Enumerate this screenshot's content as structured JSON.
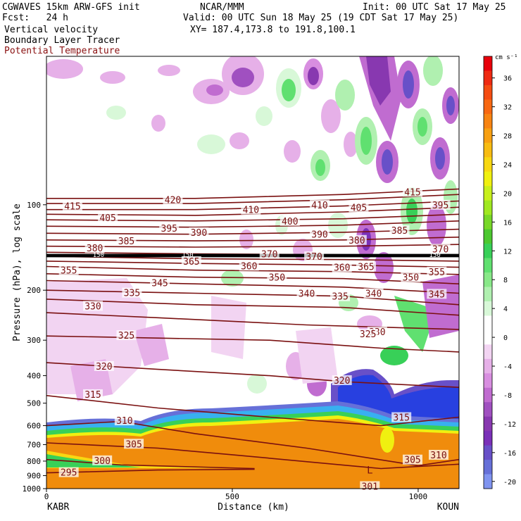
{
  "header": {
    "left_line1": "CGWAVES 15km ARW-GFS init",
    "left_line2": "Fcst:   24 h",
    "field1": "Vertical velocity",
    "field2": "Boundary Layer Tracer",
    "field3": "Potential Temperature",
    "center_line1": "NCAR/MMM",
    "center_line2": "Valid: 00 UTC Sun 18 May 25 (19 CDT Sat 17 May 25)",
    "center_line3": "XY= 187.4,173.8 to 191.8,100.1",
    "right_line1": "Init: 00 UTC Sat 17 May 25"
  },
  "colors": {
    "theta_contour": "#7a1010",
    "theta_label": "#7a1010",
    "land": "#f08c0c"
  },
  "chart_data": {
    "type": "heatmap",
    "title": "",
    "ylabel": "Pressure (hPa), log scale",
    "xlabel": "Distance (km)",
    "x_ticks": [
      0,
      500,
      1000
    ],
    "x_tick_labels": [
      "0",
      "500",
      "1000"
    ],
    "xlim": [
      0,
      1110
    ],
    "y_ticks": [
      100,
      200,
      300,
      400,
      500,
      600,
      700,
      800,
      900,
      1000
    ],
    "y_tick_labels": [
      "100",
      "200",
      "300",
      "400",
      "500",
      "600",
      "700",
      "800",
      "900",
      "1000"
    ],
    "ylim": [
      1000,
      30
    ],
    "y_log": true,
    "endpoints": [
      "KABR",
      "KOUN"
    ],
    "colorbar": {
      "unit": "cm s⁻¹",
      "ticks": [
        36,
        32,
        28,
        24,
        20,
        16,
        12,
        8,
        4,
        0,
        -4,
        -8,
        -12,
        -16,
        -20
      ],
      "levels": [
        {
          "value": 38,
          "color": "#e8000b"
        },
        {
          "value": 36,
          "color": "#ef2a12"
        },
        {
          "value": 34,
          "color": "#f54c12"
        },
        {
          "value": 32,
          "color": "#f86812"
        },
        {
          "value": 30,
          "color": "#f88412"
        },
        {
          "value": 28,
          "color": "#f8a012"
        },
        {
          "value": 26,
          "color": "#f8bc12"
        },
        {
          "value": 24,
          "color": "#f8d812"
        },
        {
          "value": 22,
          "color": "#f0f010"
        },
        {
          "value": 20,
          "color": "#c8f01c"
        },
        {
          "value": 18,
          "color": "#a0e820"
        },
        {
          "value": 16,
          "color": "#78d828"
        },
        {
          "value": 14,
          "color": "#4cc830"
        },
        {
          "value": 12,
          "color": "#38d058"
        },
        {
          "value": 10,
          "color": "#60e070"
        },
        {
          "value": 8,
          "color": "#88e888"
        },
        {
          "value": 6,
          "color": "#b0f0b0"
        },
        {
          "value": 4,
          "color": "#d8f8d8"
        },
        {
          "value": 2,
          "color": "#ffffff"
        },
        {
          "value": 0,
          "color": "#ffffff"
        },
        {
          "value": -2,
          "color": "#f2d4f2"
        },
        {
          "value": -4,
          "color": "#e6b0e8"
        },
        {
          "value": -6,
          "color": "#d88ee0"
        },
        {
          "value": -8,
          "color": "#c06cd0"
        },
        {
          "value": -10,
          "color": "#a050c0"
        },
        {
          "value": -12,
          "color": "#8838b0"
        },
        {
          "value": -14,
          "color": "#7a30b8"
        },
        {
          "value": -16,
          "color": "#6850c8"
        },
        {
          "value": -18,
          "color": "#6670d8"
        },
        {
          "value": -20,
          "color": "#8094f0"
        }
      ]
    },
    "theta_contours": [
      {
        "label": "295",
        "pts": [
          [
            0,
            880
          ],
          [
            300,
            860
          ],
          [
            560,
            855
          ]
        ]
      },
      {
        "label": "300",
        "pts": [
          [
            0,
            790
          ],
          [
            200,
            825
          ],
          [
            560,
            850
          ]
        ]
      },
      {
        "label": "301",
        "pts": [
          [
            850,
            1000
          ],
          [
            1110,
            1000
          ]
        ]
      },
      {
        "label": "305",
        "pts": [
          [
            0,
            690
          ],
          [
            300,
            720
          ],
          [
            500,
            760
          ],
          [
            900,
            850
          ],
          [
            1110,
            820
          ]
        ]
      },
      {
        "label": "310",
        "pts": [
          [
            0,
            600
          ],
          [
            200,
            580
          ],
          [
            400,
            640
          ],
          [
            700,
            720
          ],
          [
            1000,
            830
          ],
          [
            1110,
            790
          ]
        ]
      },
      {
        "label": "315",
        "pts": [
          [
            0,
            470
          ],
          [
            300,
            520
          ],
          [
            600,
            560
          ],
          [
            900,
            600
          ],
          [
            1110,
            560
          ]
        ]
      },
      {
        "label": "320",
        "pts": [
          [
            0,
            360
          ],
          [
            300,
            380
          ],
          [
            600,
            400
          ],
          [
            800,
            420
          ],
          [
            1110,
            440
          ]
        ]
      },
      {
        "label": "325",
        "pts": [
          [
            0,
            290
          ],
          [
            300,
            295
          ],
          [
            600,
            300
          ],
          [
            900,
            320
          ],
          [
            1110,
            330
          ]
        ]
      },
      {
        "label": "330",
        "pts": [
          [
            0,
            240
          ],
          [
            300,
            250
          ],
          [
            700,
            265
          ],
          [
            1110,
            275
          ]
        ]
      },
      {
        "label": "335",
        "pts": [
          [
            0,
            215
          ],
          [
            400,
            225
          ],
          [
            800,
            230
          ],
          [
            1110,
            245
          ]
        ]
      },
      {
        "label": "340",
        "pts": [
          [
            0,
            200
          ],
          [
            400,
            205
          ],
          [
            800,
            210
          ],
          [
            1110,
            225
          ]
        ]
      },
      {
        "label": "345",
        "pts": [
          [
            0,
            185
          ],
          [
            400,
            190
          ],
          [
            800,
            195
          ],
          [
            1110,
            205
          ]
        ]
      },
      {
        "label": "350",
        "pts": [
          [
            0,
            175
          ],
          [
            400,
            180
          ],
          [
            800,
            182
          ],
          [
            1110,
            190
          ]
        ]
      },
      {
        "label": "355",
        "pts": [
          [
            0,
            165
          ],
          [
            400,
            170
          ],
          [
            800,
            172
          ],
          [
            1110,
            176
          ]
        ]
      },
      {
        "label": "360",
        "pts": [
          [
            0,
            158
          ],
          [
            400,
            161
          ],
          [
            800,
            163
          ],
          [
            1110,
            166
          ]
        ]
      },
      {
        "label": "365",
        "pts": [
          [
            0,
            152
          ],
          [
            400,
            155
          ],
          [
            800,
            156
          ],
          [
            1110,
            158
          ]
        ]
      },
      {
        "label": "370",
        "pts": [
          [
            0,
            147
          ],
          [
            400,
            149
          ],
          [
            800,
            150
          ],
          [
            1110,
            152
          ]
        ]
      },
      {
        "label": "380",
        "pts": [
          [
            0,
            140
          ],
          [
            400,
            141
          ],
          [
            800,
            140
          ],
          [
            1110,
            138
          ]
        ]
      },
      {
        "label": "385",
        "pts": [
          [
            0,
            133
          ],
          [
            400,
            134
          ],
          [
            800,
            133
          ],
          [
            1110,
            130
          ]
        ]
      },
      {
        "label": "390",
        "pts": [
          [
            0,
            126
          ],
          [
            400,
            127
          ],
          [
            800,
            125
          ],
          [
            1110,
            122
          ]
        ]
      },
      {
        "label": "395",
        "pts": [
          [
            0,
            119
          ],
          [
            400,
            120
          ],
          [
            800,
            118
          ],
          [
            1110,
            114
          ]
        ]
      },
      {
        "label": "400",
        "pts": [
          [
            0,
            113
          ],
          [
            400,
            114
          ],
          [
            800,
            112
          ],
          [
            1110,
            108
          ]
        ]
      },
      {
        "label": "405",
        "pts": [
          [
            0,
            108
          ],
          [
            400,
            109
          ],
          [
            800,
            106
          ],
          [
            1110,
            102
          ]
        ]
      },
      {
        "label": "410",
        "pts": [
          [
            0,
            104
          ],
          [
            400,
            104
          ],
          [
            800,
            101
          ],
          [
            1110,
            97
          ]
        ]
      },
      {
        "label": "415",
        "pts": [
          [
            0,
            99
          ],
          [
            400,
            99
          ],
          [
            800,
            96
          ],
          [
            1110,
            92
          ]
        ]
      },
      {
        "label": "420",
        "pts": [
          [
            0,
            95
          ],
          [
            400,
            95
          ],
          [
            800,
            92
          ],
          [
            1110,
            88
          ]
        ]
      }
    ],
    "theta_labels": [
      {
        "text": "420",
        "x": 340,
        "p": 96
      },
      {
        "text": "415",
        "x": 70,
        "p": 101
      },
      {
        "text": "405",
        "x": 165,
        "p": 111
      },
      {
        "text": "395",
        "x": 330,
        "p": 121
      },
      {
        "text": "390",
        "x": 410,
        "p": 125
      },
      {
        "text": "385",
        "x": 215,
        "p": 134
      },
      {
        "text": "380",
        "x": 130,
        "p": 142
      },
      {
        "text": "365",
        "x": 390,
        "p": 158
      },
      {
        "text": "360",
        "x": 545,
        "p": 164
      },
      {
        "text": "355",
        "x": 60,
        "p": 170
      },
      {
        "text": "350",
        "x": 620,
        "p": 180
      },
      {
        "text": "345",
        "x": 305,
        "p": 188
      },
      {
        "text": "340",
        "x": 700,
        "p": 205
      },
      {
        "text": "335",
        "x": 230,
        "p": 204
      },
      {
        "text": "330",
        "x": 125,
        "p": 227
      },
      {
        "text": "325",
        "x": 215,
        "p": 288
      },
      {
        "text": "320",
        "x": 155,
        "p": 370
      },
      {
        "text": "315",
        "x": 125,
        "p": 465
      },
      {
        "text": "310",
        "x": 210,
        "p": 575
      },
      {
        "text": "305",
        "x": 235,
        "p": 695
      },
      {
        "text": "300",
        "x": 150,
        "p": 795
      },
      {
        "text": "295",
        "x": 60,
        "p": 875
      },
      {
        "text": "410",
        "x": 550,
        "p": 104
      },
      {
        "text": "400",
        "x": 655,
        "p": 114
      },
      {
        "text": "390",
        "x": 735,
        "p": 127
      },
      {
        "text": "380",
        "x": 835,
        "p": 133
      },
      {
        "text": "370",
        "x": 720,
        "p": 152
      },
      {
        "text": "360",
        "x": 795,
        "p": 166
      },
      {
        "text": "335",
        "x": 790,
        "p": 210
      },
      {
        "text": "330",
        "x": 890,
        "p": 280
      },
      {
        "text": "320",
        "x": 795,
        "p": 415
      },
      {
        "text": "315",
        "x": 955,
        "p": 560
      },
      {
        "text": "305",
        "x": 985,
        "p": 790
      },
      {
        "text": "310",
        "x": 1055,
        "p": 760
      },
      {
        "text": "301",
        "x": 870,
        "p": 980
      },
      {
        "text": "410",
        "x": 735,
        "p": 100
      },
      {
        "text": "405",
        "x": 840,
        "p": 102
      },
      {
        "text": "415",
        "x": 985,
        "p": 90
      },
      {
        "text": "395",
        "x": 1060,
        "p": 100
      },
      {
        "text": "385",
        "x": 950,
        "p": 123
      },
      {
        "text": "370",
        "x": 1060,
        "p": 143
      },
      {
        "text": "365",
        "x": 860,
        "p": 165
      },
      {
        "text": "355",
        "x": 1050,
        "p": 172
      },
      {
        "text": "350",
        "x": 980,
        "p": 180
      },
      {
        "text": "345",
        "x": 1050,
        "p": 206
      },
      {
        "text": "340",
        "x": 880,
        "p": 205
      },
      {
        "text": "370",
        "x": 600,
        "p": 149
      },
      {
        "text": "325",
        "x": 865,
        "p": 285
      }
    ],
    "heavy_lines": [
      {
        "p": 150
      },
      {
        "p": 152
      }
    ],
    "small_labels": [
      {
        "text": "150",
        "x": 140,
        "p": 150
      },
      {
        "text": "150",
        "x": 380,
        "p": 150
      },
      {
        "text": "150",
        "x": 1045,
        "p": 150
      }
    ],
    "low_marker": {
      "text": "L",
      "x": 870,
      "p": 860
    }
  }
}
